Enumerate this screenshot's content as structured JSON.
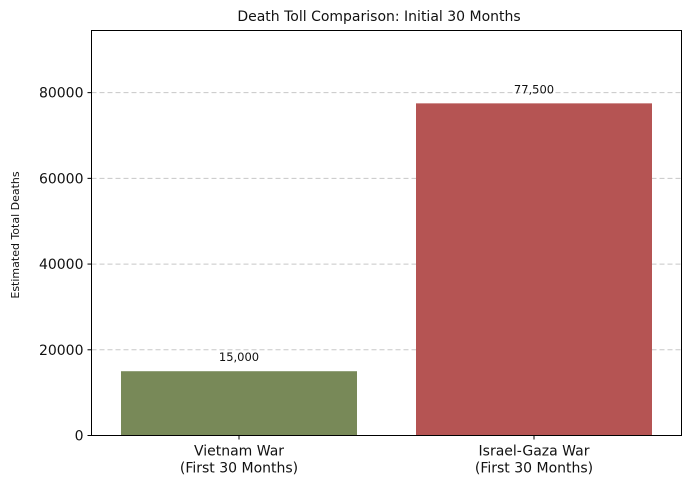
{
  "chart_data": {
    "type": "bar",
    "title": "Death Toll Comparison: Initial 30 Months",
    "xlabel": "",
    "ylabel": "Estimated Total Deaths",
    "categories": [
      [
        "Vietnam War",
        "(First 30 Months)"
      ],
      [
        "Israel-Gaza War",
        "(First 30 Months)"
      ]
    ],
    "values": [
      15000,
      77500
    ],
    "data_labels": [
      "15,000",
      "77,500"
    ],
    "colors": [
      "#788958",
      "#b55453"
    ],
    "ylim": [
      0,
      94500
    ],
    "yticks": [
      0,
      20000,
      40000,
      60000,
      80000
    ],
    "ytick_labels": [
      "0",
      "20000",
      "40000",
      "60000",
      "80000"
    ],
    "grid": true,
    "grid_axis": "y",
    "grid_style": "dashed",
    "legend": false
  }
}
